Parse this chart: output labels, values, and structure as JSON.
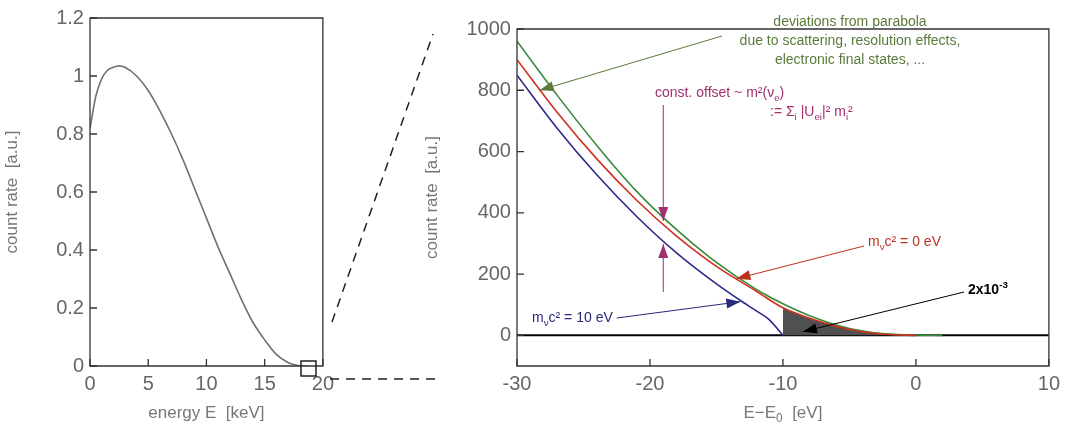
{
  "chart_data": [
    {
      "type": "line",
      "xlabel": "energy E  [keV]",
      "ylabel": "count rate  [a.u.]",
      "xlim": [
        0,
        20
      ],
      "ylim": [
        0,
        1.2
      ],
      "xticks": [
        0,
        5,
        10,
        15,
        20
      ],
      "yticks": [
        0,
        0.2,
        0.4,
        0.6,
        0.8,
        1,
        1.2
      ],
      "grid": false,
      "legend": false,
      "series": [
        {
          "color": "#707070",
          "x": [
            0,
            0.5,
            1,
            1.5,
            2,
            2.5,
            3,
            4,
            5,
            6,
            7,
            8,
            9,
            10,
            11,
            12,
            13,
            14,
            15,
            16,
            17,
            17.5,
            18,
            18.6
          ],
          "values": [
            0.82,
            0.93,
            0.99,
            1.02,
            1.03,
            1.035,
            1.03,
            1.0,
            0.95,
            0.88,
            0.8,
            0.71,
            0.61,
            0.51,
            0.41,
            0.32,
            0.23,
            0.15,
            0.09,
            0.04,
            0.012,
            0.005,
            0.001,
            0
          ]
        }
      ]
    },
    {
      "type": "line",
      "xlabel": "E−E$_{0}$  [eV]",
      "ylabel": "count rate  [a.u.]",
      "xlim": [
        -30,
        10
      ],
      "ylim": [
        -100,
        1000
      ],
      "xticks": [
        -30,
        -20,
        -10,
        0,
        10
      ],
      "yticks": [
        0,
        200,
        400,
        600,
        800,
        1000
      ],
      "grid": false,
      "legend": false,
      "ref_lines": [
        {
          "axis": "y",
          "value": 0,
          "color": "#000000"
        }
      ],
      "annotations": [
        {
          "text": "deviations from parabola\ndue to scattering, resolution effects,\nelectronic final states, ...",
          "x": -28.3,
          "y": 800
        },
        {
          "text": "const. offset ~ m²(ν$_{e}$)",
          "x": -19,
          "y": 370
        },
        ":= Σ$_{i}$ |U$_{ei}$|² m$_{i}$²",
        {
          "text": "m$_{ν}$c² = 0 eV",
          "x": -13.5,
          "y": 185
        },
        {
          "text": "m$_{ν}$c² = 10 eV",
          "x": -13.2,
          "y": 110
        },
        {
          "text": "2x10$^{-3}$",
          "x": -8.5,
          "y": 12
        }
      ],
      "series": [
        {
          "type": "area",
          "color": "#505050",
          "x": [
            -10,
            -8,
            -6,
            -4,
            -2
          ],
          "values": [
            90,
            56,
            30,
            12,
            3
          ]
        },
        {
          "color": "#3a8a3a",
          "x": [
            -30,
            -27,
            -24,
            -21,
            -18,
            -15,
            -12,
            -10,
            -8,
            -6,
            -4,
            -2,
            0,
            2
          ],
          "values": [
            960,
            785,
            620,
            470,
            345,
            238,
            150,
            103,
            64,
            34,
            14,
            4,
            1,
            0
          ]
        },
        {
          "color": "#d03020",
          "x": [
            -30,
            -27,
            -24,
            -21,
            -18,
            -15,
            -12,
            -10,
            -8,
            -6,
            -4,
            -2,
            0
          ],
          "values": [
            900,
            729,
            576,
            441,
            324,
            225,
            144,
            90,
            56,
            30,
            12,
            3,
            0
          ]
        },
        {
          "color": "#2a2a8a",
          "x": [
            -30,
            -27,
            -24,
            -21,
            -18,
            -15,
            -13,
            -12,
            -11,
            -10
          ],
          "values": [
            849,
            677,
            524,
            388,
            269,
            168,
            108,
            80,
            50,
            0
          ]
        }
      ]
    }
  ]
}
